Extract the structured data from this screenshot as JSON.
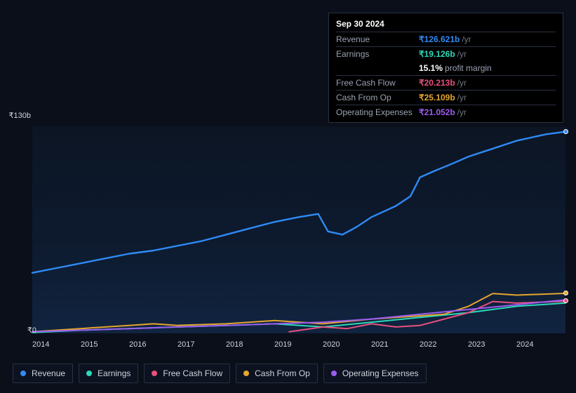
{
  "tooltip": {
    "date": "Sep 30 2024",
    "rows": [
      {
        "label": "Revenue",
        "value": "126.621b",
        "unit": "/yr",
        "color": "#2f8af5"
      },
      {
        "label": "Earnings",
        "value": "19.126b",
        "unit": "/yr",
        "color": "#2bd9b9",
        "sub_value": "15.1%",
        "sub_label": "profit margin"
      },
      {
        "label": "Free Cash Flow",
        "value": "20.213b",
        "unit": "/yr",
        "color": "#e8507e"
      },
      {
        "label": "Cash From Op",
        "value": "25.109b",
        "unit": "/yr",
        "color": "#e4a62e"
      },
      {
        "label": "Operating Expenses",
        "value": "21.052b",
        "unit": "/yr",
        "color": "#9b5cf0"
      }
    ],
    "currency_symbol": "₹"
  },
  "chart": {
    "type": "line",
    "background_gradient": [
      "#0c1524",
      "#112440"
    ],
    "ylim": [
      0,
      130
    ],
    "y_top_label": "₹130b",
    "y_bottom_label": "₹0",
    "xlim": [
      2014,
      2025
    ],
    "x_labels": [
      "2014",
      "2015",
      "2016",
      "2017",
      "2018",
      "2019",
      "2020",
      "2021",
      "2022",
      "2023",
      "2024"
    ],
    "series": [
      {
        "name": "Revenue",
        "color": "#2f8af5",
        "stroke_width": 2.4,
        "points": [
          [
            2014,
            38
          ],
          [
            2014.5,
            41
          ],
          [
            2015,
            44
          ],
          [
            2015.5,
            47
          ],
          [
            2016,
            50
          ],
          [
            2016.5,
            52
          ],
          [
            2017,
            55
          ],
          [
            2017.5,
            58
          ],
          [
            2018,
            62
          ],
          [
            2018.5,
            66
          ],
          [
            2019,
            70
          ],
          [
            2019.5,
            73
          ],
          [
            2019.9,
            75
          ],
          [
            2020.1,
            64
          ],
          [
            2020.4,
            62
          ],
          [
            2020.7,
            67
          ],
          [
            2021,
            73
          ],
          [
            2021.5,
            80
          ],
          [
            2021.8,
            86
          ],
          [
            2022.0,
            98
          ],
          [
            2022.3,
            102
          ],
          [
            2022.7,
            107
          ],
          [
            2023,
            111
          ],
          [
            2023.5,
            116
          ],
          [
            2024,
            121
          ],
          [
            2024.6,
            125
          ],
          [
            2025,
            126.6
          ]
        ]
      },
      {
        "name": "Earnings",
        "color": "#2bd9b9",
        "stroke_width": 2,
        "points": [
          [
            2014,
            0.5
          ],
          [
            2015,
            2
          ],
          [
            2016,
            3
          ],
          [
            2017,
            4
          ],
          [
            2018,
            5
          ],
          [
            2019,
            6
          ],
          [
            2020,
            4
          ],
          [
            2021,
            7
          ],
          [
            2022,
            10
          ],
          [
            2023,
            13
          ],
          [
            2024,
            17
          ],
          [
            2025,
            19.1
          ]
        ]
      },
      {
        "name": "Free Cash Flow",
        "color": "#e8507e",
        "stroke_width": 2,
        "points": [
          [
            2019.3,
            1
          ],
          [
            2020,
            4
          ],
          [
            2020.5,
            3
          ],
          [
            2021,
            6
          ],
          [
            2021.5,
            4
          ],
          [
            2022,
            5
          ],
          [
            2022.5,
            9
          ],
          [
            2023,
            13
          ],
          [
            2023.5,
            20
          ],
          [
            2024,
            19
          ],
          [
            2025,
            20.2
          ]
        ]
      },
      {
        "name": "Cash From Op",
        "color": "#e4a62e",
        "stroke_width": 2,
        "points": [
          [
            2014,
            1
          ],
          [
            2015,
            3
          ],
          [
            2016,
            5
          ],
          [
            2016.5,
            6
          ],
          [
            2017,
            5
          ],
          [
            2018,
            6
          ],
          [
            2019,
            8
          ],
          [
            2020,
            6
          ],
          [
            2021,
            9
          ],
          [
            2022,
            11
          ],
          [
            2022.5,
            12
          ],
          [
            2023,
            17
          ],
          [
            2023.5,
            25
          ],
          [
            2024,
            24
          ],
          [
            2025,
            25.1
          ]
        ]
      },
      {
        "name": "Operating Expenses",
        "color": "#9b5cf0",
        "stroke_width": 2,
        "points": [
          [
            2014,
            1
          ],
          [
            2015,
            2
          ],
          [
            2016,
            3
          ],
          [
            2017,
            4
          ],
          [
            2018,
            5
          ],
          [
            2019,
            6
          ],
          [
            2020,
            7
          ],
          [
            2021,
            9
          ],
          [
            2022,
            12
          ],
          [
            2023,
            15
          ],
          [
            2024,
            18
          ],
          [
            2025,
            21.05
          ]
        ]
      }
    ],
    "end_dots": [
      {
        "color": "#2f8af5",
        "y": 126.6
      },
      {
        "color": "#e4a62e",
        "y": 25.1
      },
      {
        "color": "#e8507e",
        "y": 20.2
      }
    ]
  },
  "legend": {
    "items": [
      {
        "label": "Revenue",
        "color": "#2f8af5"
      },
      {
        "label": "Earnings",
        "color": "#2bd9b9"
      },
      {
        "label": "Free Cash Flow",
        "color": "#e8507e"
      },
      {
        "label": "Cash From Op",
        "color": "#e4a62e"
      },
      {
        "label": "Operating Expenses",
        "color": "#9b5cf0"
      }
    ]
  }
}
